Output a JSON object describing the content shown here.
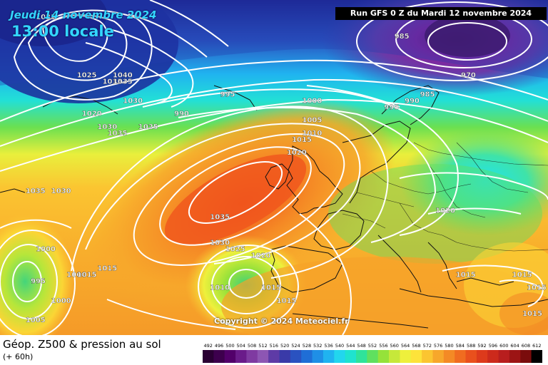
{
  "header": {
    "date": "Jeudi 14 novembre 2024",
    "time": "13:00 locale",
    "run": "Run GFS 0 Z du Mardi 12 novembre 2024"
  },
  "copyright": "Copyright © 2024 Meteociel.fr",
  "legend": {
    "title": "Géop. Z500 & pression au sol",
    "subtitle": "(+ 60h)",
    "ticks": [
      "492",
      "496",
      "500",
      "504",
      "508",
      "512",
      "516",
      "520",
      "524",
      "528",
      "532",
      "536",
      "540",
      "544",
      "548",
      "552",
      "556",
      "560",
      "564",
      "568",
      "572",
      "576",
      "580",
      "584",
      "588",
      "592",
      "596",
      "600",
      "604",
      "608",
      "612"
    ],
    "colors": [
      "#2a0033",
      "#3d004d",
      "#52006a",
      "#6a1b8a",
      "#7f3aa1",
      "#8d56b3",
      "#5e3ba6",
      "#3a3aa8",
      "#2a52c0",
      "#1f6ed6",
      "#1f8fe6",
      "#20b3f0",
      "#22d6ee",
      "#1fe3cf",
      "#2fe39a",
      "#5fe05f",
      "#95e23a",
      "#c6e83a",
      "#eef03c",
      "#fde33a",
      "#fbc531",
      "#f7a72b",
      "#f48a25",
      "#f06c20",
      "#e9501d",
      "#dd3a1c",
      "#cc2a1c",
      "#b81e1e",
      "#9c1414",
      "#7a0c0c",
      "#000000"
    ]
  },
  "map_labels": [
    {
      "text": "1025",
      "x": -55,
      "y": 76
    },
    {
      "text": "1025",
      "x": -47,
      "y": 67
    },
    {
      "text": "1035",
      "x": -42,
      "y": 66
    },
    {
      "text": "1040",
      "x": -40,
      "y": 67
    },
    {
      "text": "1035",
      "x": -40,
      "y": 66
    },
    {
      "text": "1030",
      "x": -38,
      "y": 63
    },
    {
      "text": "1020",
      "x": -46,
      "y": 61
    },
    {
      "text": "1030",
      "x": -43,
      "y": 59
    },
    {
      "text": "1035",
      "x": -41,
      "y": 58
    },
    {
      "text": "1025",
      "x": -35,
      "y": 59
    },
    {
      "text": "990",
      "x": -28,
      "y": 61
    },
    {
      "text": "995",
      "x": -19,
      "y": 64
    },
    {
      "text": "1000",
      "x": -3,
      "y": 63
    },
    {
      "text": "1005",
      "x": -3,
      "y": 60
    },
    {
      "text": "1010",
      "x": -3,
      "y": 58
    },
    {
      "text": "1015",
      "x": -5,
      "y": 57
    },
    {
      "text": "1020",
      "x": -6,
      "y": 55
    },
    {
      "text": "985",
      "x": 15,
      "y": 73
    },
    {
      "text": "970",
      "x": 28,
      "y": 67
    },
    {
      "text": "985",
      "x": 20,
      "y": 64
    },
    {
      "text": "990",
      "x": 17,
      "y": 63
    },
    {
      "text": "995",
      "x": 13,
      "y": 62
    },
    {
      "text": "1035",
      "x": -57,
      "y": 49
    },
    {
      "text": "1030",
      "x": -52,
      "y": 49
    },
    {
      "text": "1035",
      "x": -21,
      "y": 45
    },
    {
      "text": "1030",
      "x": -21,
      "y": 41
    },
    {
      "text": "1025",
      "x": -18,
      "y": 40
    },
    {
      "text": "1020",
      "x": -13,
      "y": 39
    },
    {
      "text": "1020",
      "x": 23,
      "y": 46
    },
    {
      "text": "1000",
      "x": -55,
      "y": 40
    },
    {
      "text": "995",
      "x": -56,
      "y": 35
    },
    {
      "text": "1000",
      "x": -49,
      "y": 36
    },
    {
      "text": "1015",
      "x": -47,
      "y": 36
    },
    {
      "text": "1015",
      "x": -43,
      "y": 37
    },
    {
      "text": "1000",
      "x": -52,
      "y": 32
    },
    {
      "text": "1005",
      "x": -57,
      "y": 29
    },
    {
      "text": "1010",
      "x": -21,
      "y": 34
    },
    {
      "text": "1015",
      "x": -11,
      "y": 34
    },
    {
      "text": "1015",
      "x": -8,
      "y": 32
    },
    {
      "text": "1015",
      "x": 27,
      "y": 36
    },
    {
      "text": "1015",
      "x": 38,
      "y": 36
    },
    {
      "text": "1015",
      "x": 42,
      "y": 34
    },
    {
      "text": "1015",
      "x": 40,
      "y": 30
    }
  ]
}
